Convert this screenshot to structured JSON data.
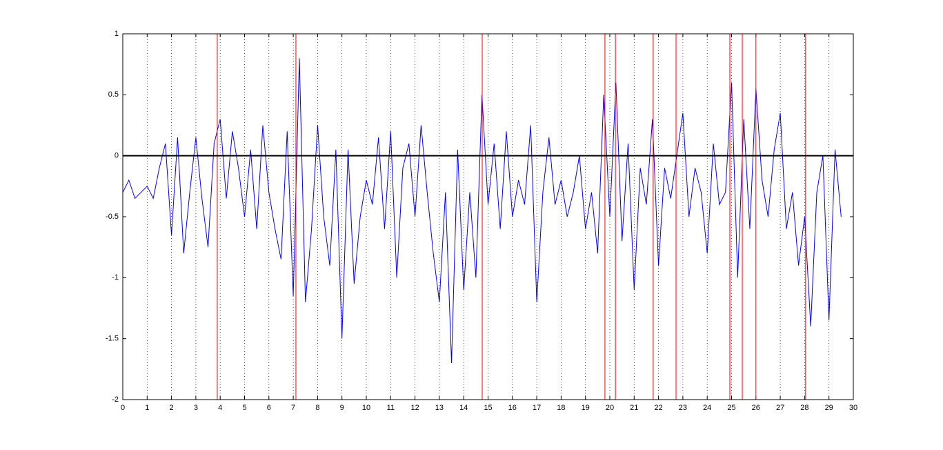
{
  "chart_data": {
    "type": "line",
    "x": [
      0,
      0.25,
      0.5,
      0.75,
      1,
      1.25,
      1.5,
      1.75,
      2,
      2.25,
      2.5,
      2.75,
      3,
      3.25,
      3.5,
      3.75,
      4,
      4.25,
      4.5,
      4.75,
      5,
      5.25,
      5.5,
      5.75,
      6,
      6.25,
      6.5,
      6.75,
      7,
      7.25,
      7.5,
      7.75,
      8,
      8.25,
      8.5,
      8.75,
      9,
      9.25,
      9.5,
      9.75,
      10,
      10.25,
      10.5,
      10.75,
      11,
      11.25,
      11.5,
      11.75,
      12,
      12.25,
      12.5,
      12.75,
      13,
      13.25,
      13.5,
      13.75,
      14,
      14.25,
      14.5,
      14.75,
      15,
      15.25,
      15.5,
      15.75,
      16,
      16.25,
      16.5,
      16.75,
      17,
      17.25,
      17.5,
      17.75,
      18,
      18.25,
      18.5,
      18.75,
      19,
      19.25,
      19.5,
      19.75,
      20,
      20.25,
      20.5,
      20.75,
      21,
      21.25,
      21.5,
      21.75,
      22,
      22.25,
      22.5,
      22.75,
      23,
      23.25,
      23.5,
      23.75,
      24,
      24.25,
      24.5,
      24.75,
      25,
      25.25,
      25.5,
      25.75,
      26,
      26.25,
      26.5,
      26.75,
      27,
      27.25,
      27.5,
      27.75,
      28,
      28.25,
      28.5,
      28.75,
      29,
      29.25,
      29.5
    ],
    "values": [
      -0.3,
      -0.2,
      -0.35,
      -0.3,
      -0.25,
      -0.35,
      -0.1,
      0.1,
      -0.65,
      0.15,
      -0.8,
      -0.3,
      0.15,
      -0.35,
      -0.75,
      0.1,
      0.3,
      -0.35,
      0.2,
      -0.1,
      -0.5,
      0.05,
      -0.6,
      0.25,
      -0.3,
      -0.6,
      -0.85,
      0.2,
      -1.15,
      0.8,
      -1.2,
      -0.6,
      0.25,
      -0.5,
      -0.9,
      0.05,
      -1.5,
      0.05,
      -1.05,
      -0.5,
      -0.2,
      -0.4,
      0.15,
      -0.6,
      0.2,
      -1.0,
      -0.1,
      0.1,
      -0.5,
      0.25,
      -0.3,
      -0.8,
      -1.2,
      -0.3,
      -1.7,
      0.05,
      -1.1,
      -0.3,
      -1.0,
      0.5,
      -0.4,
      0.1,
      -0.6,
      0.2,
      -0.5,
      -0.2,
      -0.4,
      0.25,
      -1.2,
      -0.3,
      0.15,
      -0.4,
      -0.2,
      -0.5,
      -0.3,
      0.0,
      -0.6,
      -0.3,
      -0.8,
      0.5,
      -0.5,
      0.6,
      -0.7,
      0.1,
      -1.1,
      -0.1,
      -0.4,
      0.3,
      -0.9,
      -0.1,
      -0.35,
      0.0,
      0.35,
      -0.5,
      -0.1,
      -0.3,
      -0.8,
      0.1,
      -0.4,
      -0.3,
      0.6,
      -1.0,
      0.3,
      -0.6,
      0.55,
      -0.2,
      -0.5,
      0.05,
      0.35,
      -0.6,
      -0.3,
      -0.9,
      -0.5,
      -1.4,
      -0.3,
      0.0,
      -1.35,
      0.05,
      -0.5
    ],
    "color": "#0000ff",
    "xlim": [
      0,
      30
    ],
    "xticks": [
      0,
      1,
      2,
      3,
      4,
      5,
      6,
      7,
      8,
      9,
      10,
      11,
      12,
      13,
      14,
      15,
      16,
      17,
      18,
      19,
      20,
      21,
      22,
      23,
      24,
      25,
      26,
      27,
      28,
      29,
      30
    ],
    "ylim": [
      -2,
      1
    ],
    "yticks": [
      -2,
      -1.5,
      -1,
      -0.5,
      0,
      0.5,
      1
    ],
    "xgrid": true,
    "vlines": {
      "color": "#ff0000",
      "values": [
        3.88,
        7.11,
        14.76,
        19.8,
        20.23,
        21.78,
        22.72,
        24.93,
        25.44,
        26.0,
        28.04
      ]
    },
    "hlines": {
      "color": "#000000",
      "values": [
        0
      ]
    }
  }
}
